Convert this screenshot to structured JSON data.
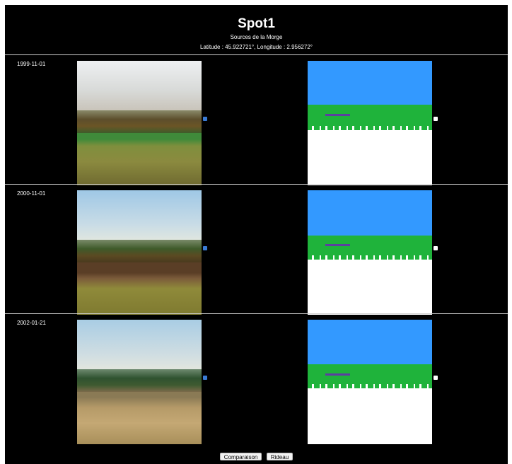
{
  "header": {
    "title": "Spot1",
    "subtitle": "Sources de la Morge",
    "coordinates": "Latitude : 45.922721°, Longitude : 2.956272°"
  },
  "colors": {
    "mask_sky": "#3399ff",
    "mask_vegetation": "#1fb33b",
    "mask_ground": "#ffffff",
    "mask_water": "#5b3fa0"
  },
  "rows": [
    {
      "date": "1999-11-01",
      "photo_icon": "landscape-photo",
      "mask_icon": "segmentation-mask"
    },
    {
      "date": "2000-11-01",
      "photo_icon": "landscape-photo",
      "mask_icon": "segmentation-mask"
    },
    {
      "date": "2002-01-21",
      "photo_icon": "landscape-photo",
      "mask_icon": "segmentation-mask"
    }
  ],
  "controls": {
    "comparison_label": "Comparaison",
    "curtain_label": "Rideau"
  }
}
